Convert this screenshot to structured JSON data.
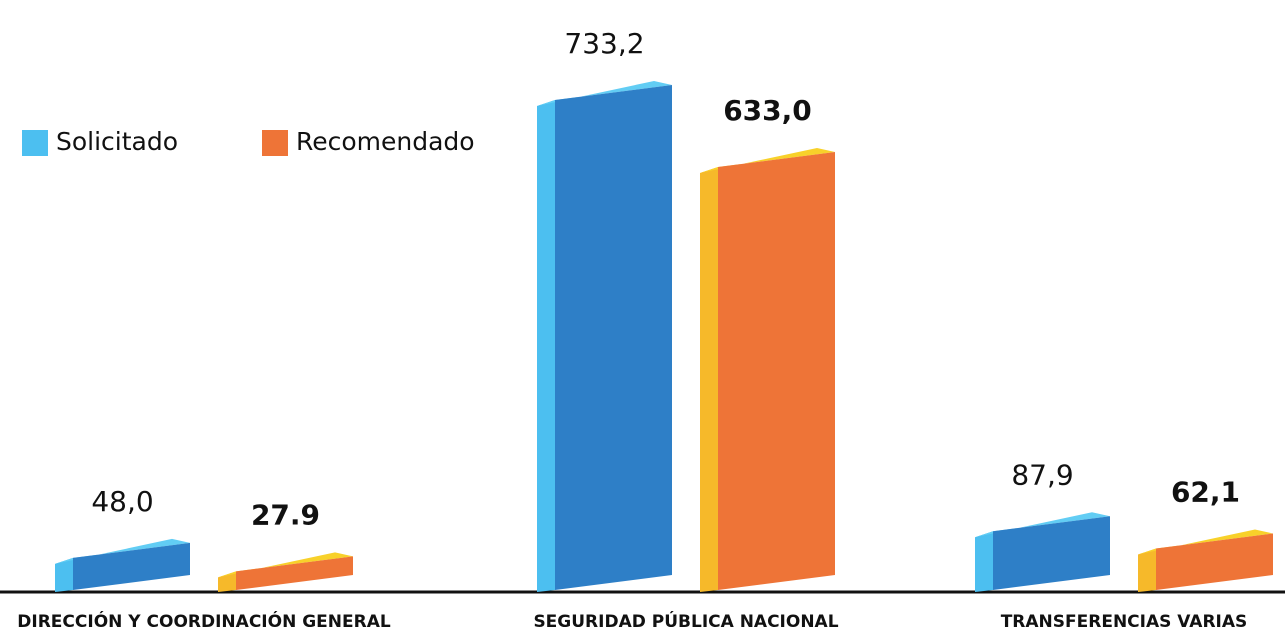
{
  "chart_data": {
    "type": "bar3d",
    "categories": [
      "DIRECCIÓN Y COORDINACIÓN GENERAL",
      "SEGURIDAD PÚBLICA NACIONAL",
      "TRANSFERENCIAS VARIAS"
    ],
    "series": [
      {
        "name": "Solicitado",
        "color": "#2e7fc7",
        "values": [
          48.0,
          733.2,
          87.9
        ],
        "value_labels": [
          "48,0",
          "733,2",
          "87,9"
        ]
      },
      {
        "name": "Recomendado",
        "color": "#ee7437",
        "values": [
          27.9,
          633.0,
          62.1
        ],
        "value_labels": [
          "27.9",
          "633,0",
          "62,1"
        ]
      }
    ]
  }
}
